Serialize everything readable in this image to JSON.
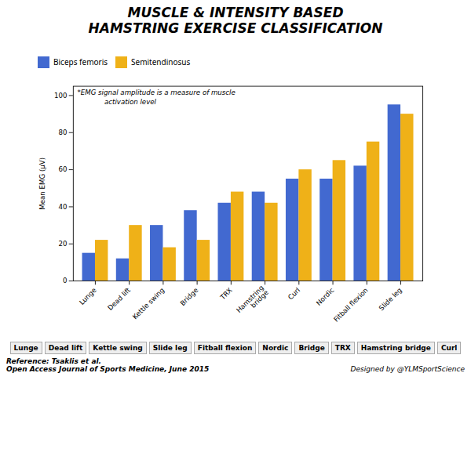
{
  "chart_data": {
    "type": "bar",
    "title": "MUSCLE & INTENSITY BASED\nHAMSTRING EXERCISE CLASSIFICATION",
    "categories": [
      "Lunge",
      "Dead lift",
      "Kettle swing",
      "Bridge",
      "TRX",
      "Hamstring\nbridge",
      "Curl",
      "Nordic",
      "Fitball flexion",
      "Slide leg"
    ],
    "series": [
      {
        "name": "Biceps femoris",
        "values": [
          15,
          12,
          30,
          38,
          42,
          48,
          55,
          55,
          62,
          95
        ]
      },
      {
        "name": "Semitendinosus",
        "values": [
          22,
          30,
          18,
          22,
          48,
          42,
          60,
          65,
          75,
          90
        ]
      }
    ],
    "ylabel": "Mean EMG (μV)",
    "ylim": [
      0,
      105
    ],
    "yticks": [
      0,
      20,
      40,
      60,
      80,
      100
    ],
    "grid": false,
    "legend": "upper left",
    "annotations": [
      "*EMG signal amplitude is a measure of muscle",
      "activation level"
    ],
    "photo_labels": [
      "Lunge",
      "Dead lift",
      "Kettle swing",
      "Slide leg",
      "Fitball flexion",
      "Nordic",
      "Bridge",
      "TRX",
      "Hamstring bridge",
      "Curl"
    ],
    "footer": [
      "Reference: Tsaklis et al.\nOpen Access Journal of Sports Medicine, June 2015",
      "Designed by @YLMSportScience"
    ]
  }
}
